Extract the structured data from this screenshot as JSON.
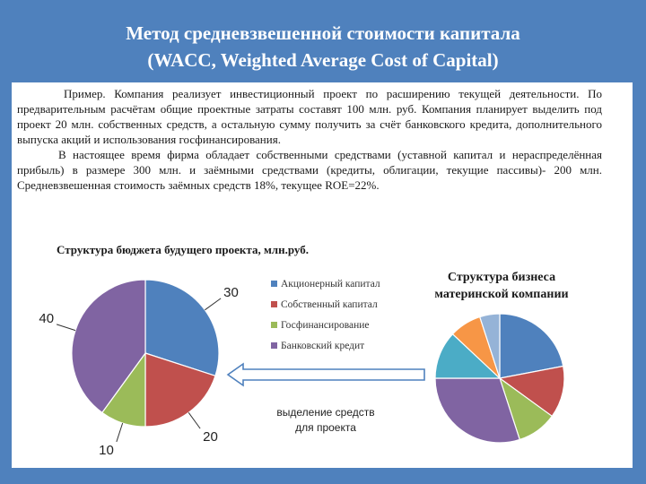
{
  "header": {
    "title_line1": "Метод средневзвешенной стоимости капитала",
    "title_line2": "(WACC, Weighted Average Cost of Capital)"
  },
  "body": {
    "paragraph1": "Пример. Компания реализует инвестиционный проект по расширению текущей деятельности. По предварительным расчётам общие проектные затраты составят 100 млн. руб. Компания планирует выделить под проект 20 млн. собственных средств, а остальную сумму получить за счёт банковского кредита, дополнительного выпуска акций и использования госфинансирования.",
    "paragraph2": "В настоящее время фирма обладает собственными средствами (уставной капитал и нераспределённая прибыль) в размере 300 млн. и заёмными средствами (кредиты, облигации, текущие пассивы)- 200 млн. Средневзвешенная стоимость заёмных средств 18%, текущее ROE=22%.",
    "subheading": "Структура бюджета будущего проекта, млн.руб."
  },
  "note": {
    "line1": "выделение средств",
    "line2": "для проекта"
  },
  "chart_data": [
    {
      "type": "pie",
      "title": "",
      "labels": [
        "Акционерный капитал",
        "Собственный капитал",
        "Госфинансирование",
        "Банковский кредит"
      ],
      "values": [
        30,
        20,
        10,
        40
      ],
      "colors": [
        "#4f81bd",
        "#c0504d",
        "#9bbb59",
        "#8064a2"
      ],
      "legend_position": "right"
    },
    {
      "type": "pie",
      "title_line1": "Структура бизнеса",
      "title_line2": "материнской компании",
      "values": [
        22,
        13,
        10,
        30,
        12,
        8,
        5
      ],
      "colors": [
        "#4f81bd",
        "#c0504d",
        "#9bbb59",
        "#8064a2",
        "#4bacc6",
        "#f79646",
        "#95b3d7"
      ],
      "value_labels_shown": false
    }
  ]
}
